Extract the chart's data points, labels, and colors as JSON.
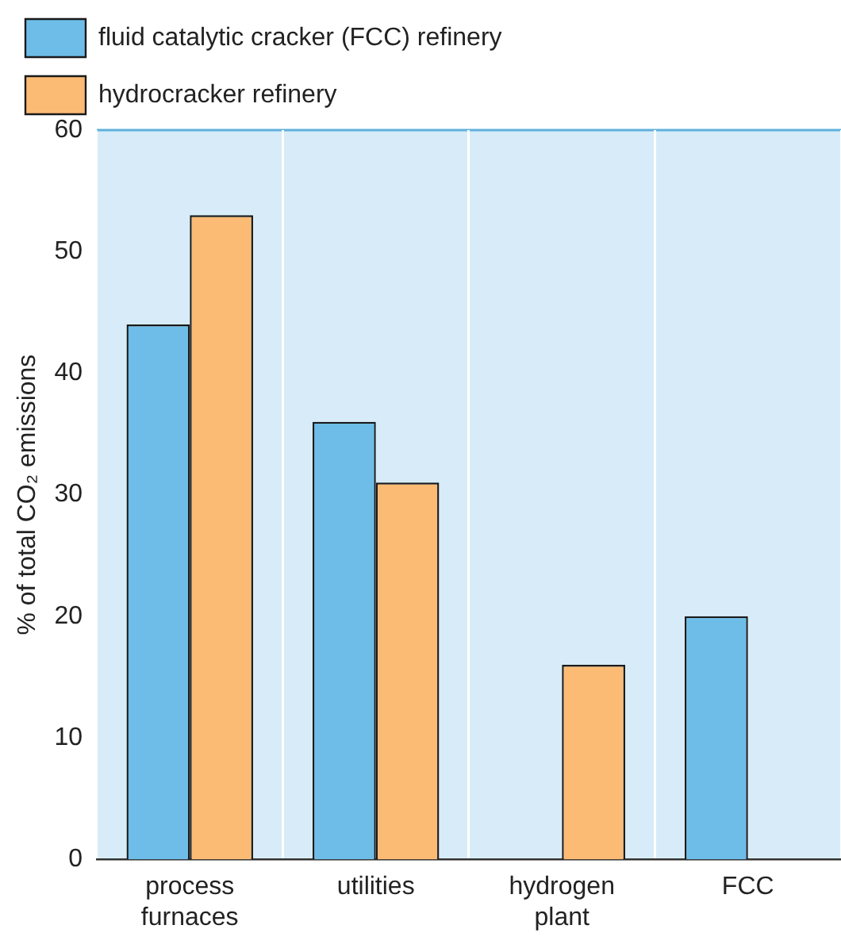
{
  "chart_data": {
    "type": "bar",
    "ylabel": "% of total CO₂ emissions",
    "categories": [
      "process furnaces",
      "utilities",
      "hydrogen plant",
      "FCC"
    ],
    "series": [
      {
        "name": "fluid catalytic cracker (FCC) refinery",
        "color": "#6dbde8",
        "values": [
          44,
          36,
          null,
          20
        ]
      },
      {
        "name": "hydrocracker refinery",
        "color": "#fbbb74",
        "values": [
          53,
          31,
          16,
          null
        ]
      }
    ],
    "ylim": [
      0,
      60
    ],
    "yticks": [
      0,
      10,
      20,
      30,
      40,
      50,
      60
    ],
    "grid": "x",
    "legend": "top left"
  }
}
